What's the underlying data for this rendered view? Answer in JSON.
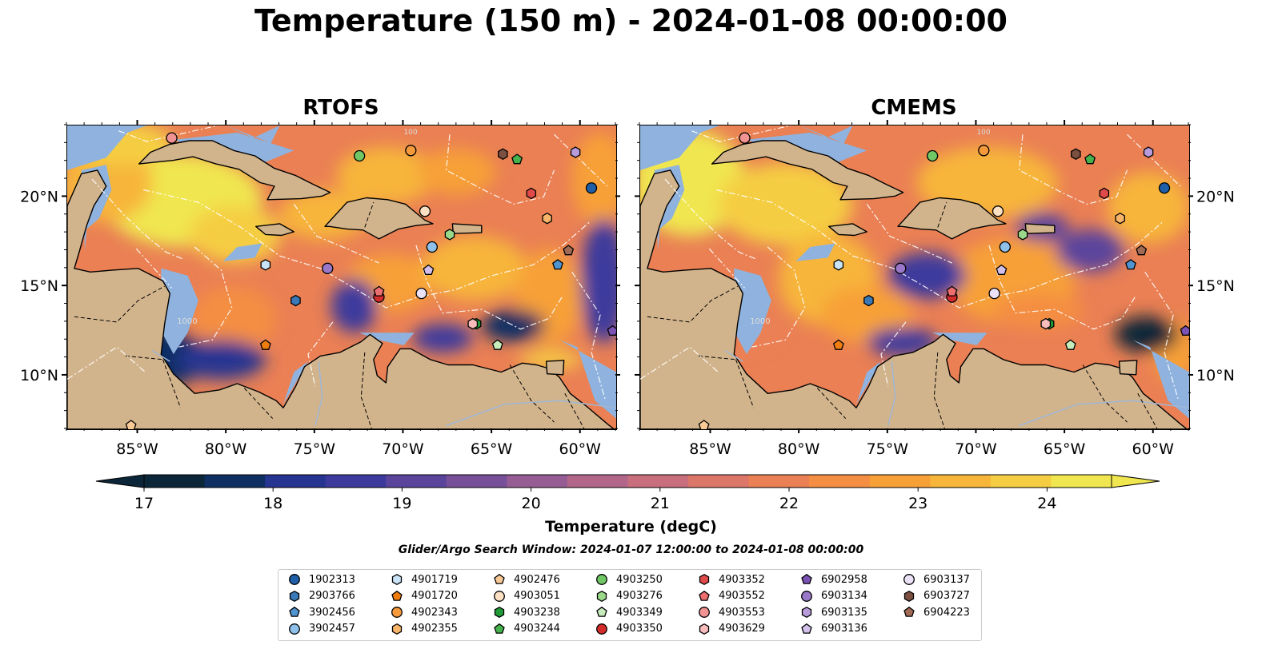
{
  "title": "Temperature (150 m) - 2024-01-08 00:00:00",
  "panels": [
    {
      "name": "RTOFS"
    },
    {
      "name": "CMEMS"
    }
  ],
  "axes": {
    "lon_ticks": [
      "85°W",
      "80°W",
      "75°W",
      "70°W",
      "65°W",
      "60°W"
    ],
    "lat_ticks": [
      "20°N",
      "15°N",
      "10°N"
    ]
  },
  "colorbar": {
    "label": "Temperature (degC)",
    "ticks": [
      "17",
      "18",
      "19",
      "20",
      "21",
      "22",
      "23",
      "24"
    ],
    "colors": [
      "#0b2638",
      "#0f2f63",
      "#263591",
      "#3d3a9d",
      "#5b449c",
      "#78509a",
      "#965d94",
      "#b2678a",
      "#c96e7c",
      "#dc7669",
      "#ea8054",
      "#f48e42",
      "#f7a038",
      "#f7b53a",
      "#f5cd42",
      "#f0e64f"
    ]
  },
  "search_window": "Glider/Argo Search Window: 2024-01-07 12:00:00 to 2024-01-08 00:00:00",
  "contour_labels": [
    "100",
    "1000"
  ],
  "colors": {
    "land": "#d2b48c",
    "shelf": "#8fb3de",
    "deep_ocean": "#0b2638"
  },
  "legend": [
    {
      "id": "1902313",
      "marker": "circle",
      "color": "#1f5fa8"
    },
    {
      "id": "2903766",
      "marker": "hexagon",
      "color": "#3a78b8"
    },
    {
      "id": "3902456",
      "marker": "pentagon",
      "color": "#4f93cf"
    },
    {
      "id": "3902457",
      "marker": "circle",
      "color": "#8fc0ea"
    },
    {
      "id": "4901719",
      "marker": "hexagon",
      "color": "#c9e3f7"
    },
    {
      "id": "4901720",
      "marker": "pentagon",
      "color": "#f07d10"
    },
    {
      "id": "4902343",
      "marker": "circle",
      "color": "#f59a3a"
    },
    {
      "id": "4902355",
      "marker": "hexagon",
      "color": "#f8b56a"
    },
    {
      "id": "4902476",
      "marker": "pentagon",
      "color": "#f9c996"
    },
    {
      "id": "4903051",
      "marker": "circle",
      "color": "#fbe0c3"
    },
    {
      "id": "4903238",
      "marker": "hexagon",
      "color": "#219a37"
    },
    {
      "id": "4903244",
      "marker": "pentagon",
      "color": "#45b24d"
    },
    {
      "id": "4903250",
      "marker": "circle",
      "color": "#70c765"
    },
    {
      "id": "4903276",
      "marker": "hexagon",
      "color": "#9ad98a"
    },
    {
      "id": "4903349",
      "marker": "pentagon",
      "color": "#c6ecbb"
    },
    {
      "id": "4903350",
      "marker": "circle",
      "color": "#d42b2b"
    },
    {
      "id": "4903352",
      "marker": "hexagon",
      "color": "#e04a4a"
    },
    {
      "id": "4903552",
      "marker": "pentagon",
      "color": "#ec6e6e"
    },
    {
      "id": "4903553",
      "marker": "circle",
      "color": "#f29393"
    },
    {
      "id": "4903629",
      "marker": "hexagon",
      "color": "#f8bcbc"
    },
    {
      "id": "6902958",
      "marker": "pentagon",
      "color": "#7a52b3"
    },
    {
      "id": "6903134",
      "marker": "circle",
      "color": "#9a78c9"
    },
    {
      "id": "6903135",
      "marker": "hexagon",
      "color": "#b79bdb"
    },
    {
      "id": "6903136",
      "marker": "pentagon",
      "color": "#d3c0ea"
    },
    {
      "id": "6903137",
      "marker": "circle",
      "color": "#ece2f7"
    },
    {
      "id": "6903727",
      "marker": "hexagon",
      "color": "#7c5040"
    },
    {
      "id": "6904223",
      "marker": "pentagon",
      "color": "#a06a55"
    }
  ],
  "chart_data": {
    "type": "heatmap",
    "variable": "Temperature",
    "units": "degC",
    "depth": "150 m",
    "time": "2024-01-08 00:00:00",
    "colorbar_range": [
      17,
      24.5
    ],
    "colorbar_extend": "both",
    "lon_range": [
      -89,
      -58
    ],
    "lat_range": [
      7,
      24
    ],
    "floats": [
      {
        "id": "1902313",
        "lon": -59.4,
        "lat": 20.5
      },
      {
        "id": "2903766",
        "lon": -76.1,
        "lat": 14.2
      },
      {
        "id": "3902456",
        "lon": -61.3,
        "lat": 16.2
      },
      {
        "id": "3902457",
        "lon": -68.4,
        "lat": 17.2
      },
      {
        "id": "4901719",
        "lon": -77.8,
        "lat": 16.2
      },
      {
        "id": "4901720",
        "lon": -77.8,
        "lat": 11.7
      },
      {
        "id": "4902343",
        "lon": -69.6,
        "lat": 22.6
      },
      {
        "id": "4902355",
        "lon": -61.9,
        "lat": 18.8
      },
      {
        "id": "4902476",
        "lon": -85.4,
        "lat": 7.2
      },
      {
        "id": "4903051",
        "lon": -68.8,
        "lat": 19.2
      },
      {
        "id": "4903238",
        "lon": -65.9,
        "lat": 12.9
      },
      {
        "id": "4903244",
        "lon": -63.6,
        "lat": 22.1
      },
      {
        "id": "4903250",
        "lon": -72.5,
        "lat": 22.3
      },
      {
        "id": "4903276",
        "lon": -67.4,
        "lat": 17.9
      },
      {
        "id": "4903349",
        "lon": -64.7,
        "lat": 11.7
      },
      {
        "id": "4903350",
        "lon": -71.4,
        "lat": 14.4
      },
      {
        "id": "4903352",
        "lon": -62.8,
        "lat": 20.2
      },
      {
        "id": "4903552",
        "lon": -71.4,
        "lat": 14.7
      },
      {
        "id": "4903553",
        "lon": -83.1,
        "lat": 23.3
      },
      {
        "id": "4903629",
        "lon": -66.1,
        "lat": 12.9
      },
      {
        "id": "6902958",
        "lon": -58.2,
        "lat": 12.5
      },
      {
        "id": "6903134",
        "lon": -74.3,
        "lat": 16.0
      },
      {
        "id": "6903135",
        "lon": -60.3,
        "lat": 22.5
      },
      {
        "id": "6903136",
        "lon": -68.6,
        "lat": 15.9
      },
      {
        "id": "6903137",
        "lon": -69.0,
        "lat": 14.6
      },
      {
        "id": "6903727",
        "lon": -64.4,
        "lat": 22.4
      },
      {
        "id": "6904223",
        "lon": -60.7,
        "lat": 17.0
      }
    ]
  }
}
